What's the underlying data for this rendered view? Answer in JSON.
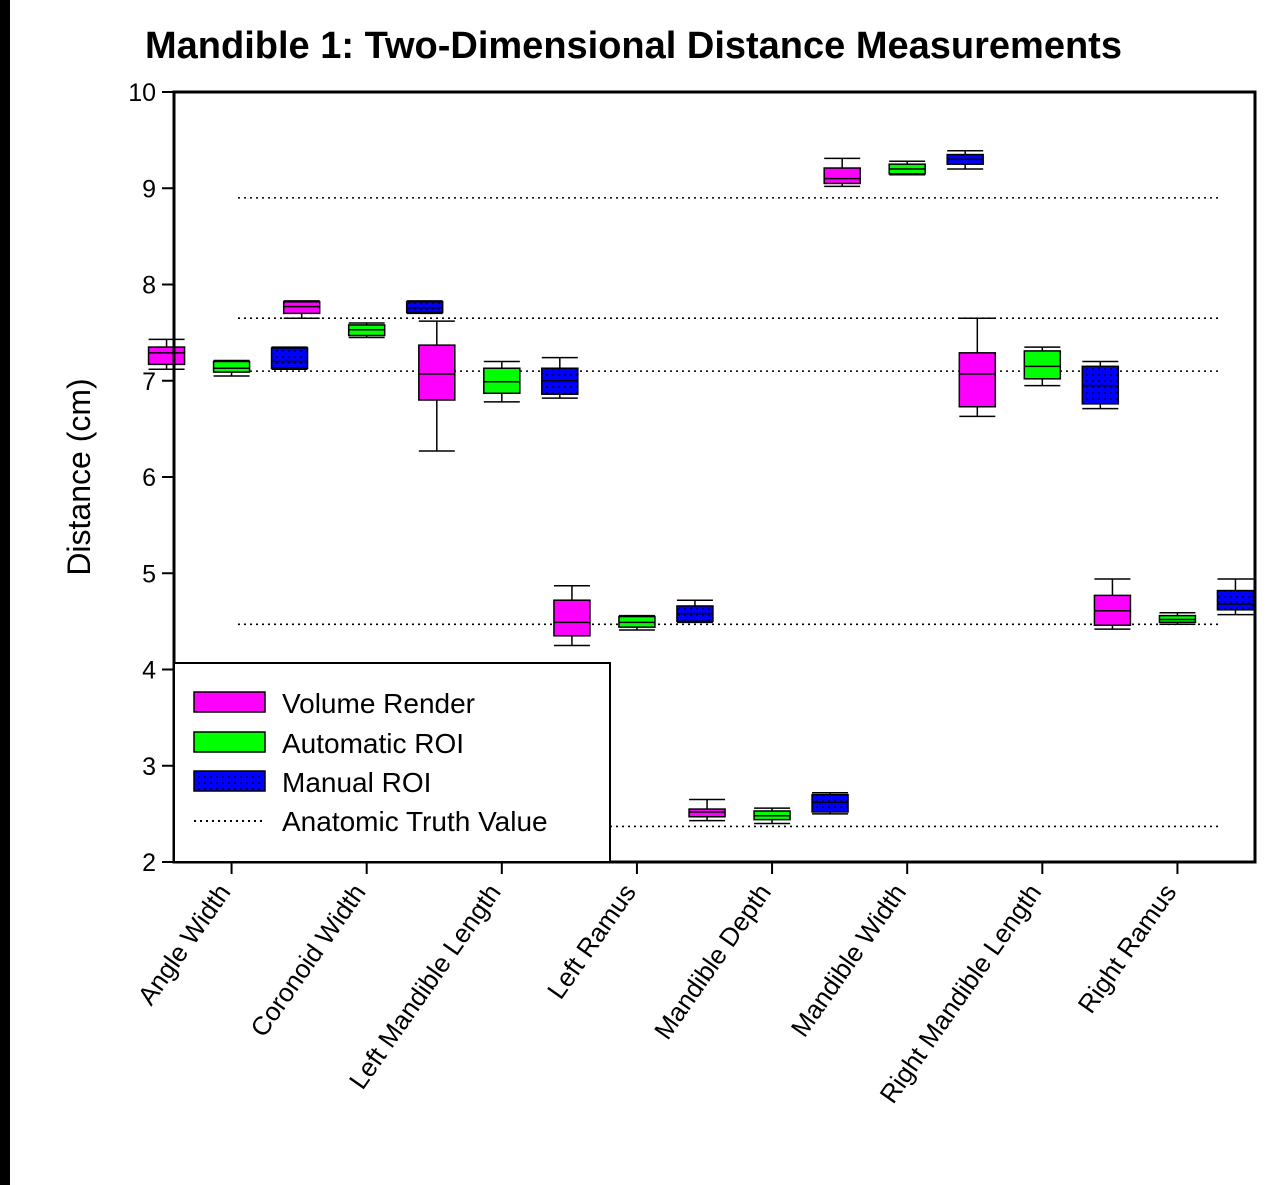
{
  "chart_data": {
    "type": "box",
    "title": "Mandible 1: Two-Dimensional Distance Measurements",
    "xlabel": "",
    "ylabel": "Distance (cm)",
    "ylim": [
      2,
      10
    ],
    "yticks": [
      "2",
      "3",
      "4",
      "5",
      "6",
      "7",
      "8",
      "9",
      "10"
    ],
    "grid": false,
    "legend_position": "bottom-left",
    "categories": [
      "Angle Width",
      "Coronoid Width",
      "Left Mandible Length",
      "Left Ramus",
      "Mandible Depth",
      "Mandible Width",
      "Right Mandible Length",
      "Right Ramus"
    ],
    "series": [
      {
        "name": "Volume Render",
        "color": "#ff00ff",
        "pattern": "solid",
        "boxes": [
          {
            "min": 7.12,
            "q1": 7.17,
            "median": 7.29,
            "q3": 7.35,
            "max": 7.43
          },
          {
            "min": 7.65,
            "q1": 7.7,
            "median": 7.77,
            "q3": 7.82,
            "max": 7.83
          },
          {
            "min": 6.27,
            "q1": 6.8,
            "median": 7.07,
            "q3": 7.37,
            "max": 7.62
          },
          {
            "min": 4.25,
            "q1": 4.35,
            "median": 4.49,
            "q3": 4.72,
            "max": 4.87
          },
          {
            "min": 2.43,
            "q1": 2.47,
            "median": 2.52,
            "q3": 2.55,
            "max": 2.65
          },
          {
            "min": 9.02,
            "q1": 9.05,
            "median": 9.1,
            "q3": 9.21,
            "max": 9.31
          },
          {
            "min": 6.63,
            "q1": 6.73,
            "median": 7.07,
            "q3": 7.29,
            "max": 7.65
          },
          {
            "min": 4.42,
            "q1": 4.46,
            "median": 4.61,
            "q3": 4.77,
            "max": 4.94
          }
        ]
      },
      {
        "name": "Automatic ROI",
        "color": "#00ff00",
        "pattern": "solid",
        "boxes": [
          {
            "min": 7.05,
            "q1": 7.09,
            "median": 7.13,
            "q3": 7.2,
            "max": 7.21
          },
          {
            "min": 7.45,
            "q1": 7.47,
            "median": 7.53,
            "q3": 7.58,
            "max": 7.6
          },
          {
            "min": 6.78,
            "q1": 6.87,
            "median": 6.99,
            "q3": 7.13,
            "max": 7.2
          },
          {
            "min": 4.41,
            "q1": 4.44,
            "median": 4.49,
            "q3": 4.55,
            "max": 4.56
          },
          {
            "min": 2.4,
            "q1": 2.44,
            "median": 2.48,
            "q3": 2.53,
            "max": 2.56
          },
          {
            "min": 9.14,
            "q1": 9.15,
            "median": 9.2,
            "q3": 9.25,
            "max": 9.28
          },
          {
            "min": 6.95,
            "q1": 7.02,
            "median": 7.15,
            "q3": 7.31,
            "max": 7.35
          },
          {
            "min": 4.47,
            "q1": 4.49,
            "median": 4.52,
            "q3": 4.56,
            "max": 4.59
          }
        ]
      },
      {
        "name": "Manual ROI",
        "color": "#0000ff",
        "pattern": "dotted",
        "boxes": [
          {
            "min": 7.12,
            "q1": 7.13,
            "median": 7.2,
            "q3": 7.34,
            "max": 7.35
          },
          {
            "min": 7.7,
            "q1": 7.71,
            "median": 7.76,
            "q3": 7.82,
            "max": 7.83
          },
          {
            "min": 6.82,
            "q1": 6.86,
            "median": 7.0,
            "q3": 7.13,
            "max": 7.24
          },
          {
            "min": 4.49,
            "q1": 4.5,
            "median": 4.58,
            "q3": 4.66,
            "max": 4.72
          },
          {
            "min": 2.5,
            "q1": 2.52,
            "median": 2.62,
            "q3": 2.7,
            "max": 2.72
          },
          {
            "min": 9.2,
            "q1": 9.25,
            "median": 9.3,
            "q3": 9.35,
            "max": 9.39
          },
          {
            "min": 6.71,
            "q1": 6.76,
            "median": 6.95,
            "q3": 7.15,
            "max": 7.2
          },
          {
            "min": 4.57,
            "q1": 4.62,
            "median": 4.68,
            "q3": 4.82,
            "max": 4.94
          }
        ]
      }
    ],
    "reference_lines": {
      "name": "Anatomic Truth Value",
      "style": "dotted",
      "values": [
        8.9,
        7.65,
        7.1,
        4.47,
        2.37
      ]
    }
  }
}
